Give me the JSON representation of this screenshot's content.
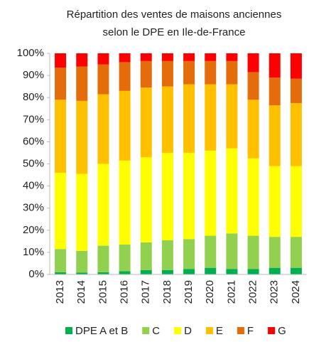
{
  "chart_data": {
    "type": "stacked_bar",
    "title": "Répartition des ventes de maisons anciennes selon le DPE en Ile-de-France",
    "categories": [
      "2013",
      "2014",
      "2015",
      "2016",
      "2017",
      "2018",
      "2019",
      "2020",
      "2021",
      "2022",
      "2023",
      "2024"
    ],
    "series": [
      {
        "name": "DPE A et B",
        "color": "#00b050",
        "values": [
          1,
          0.8,
          1,
          1.5,
          2,
          2,
          2.5,
          3,
          2.5,
          2.5,
          3,
          3
        ]
      },
      {
        "name": "C",
        "color": "#92d050",
        "values": [
          10.5,
          9.9,
          12,
          12,
          12.5,
          13.5,
          13.5,
          14.5,
          16,
          15,
          14,
          14
        ]
      },
      {
        "name": "D",
        "color": "#ffff00",
        "values": [
          34.5,
          34.8,
          37,
          38,
          38.5,
          39.5,
          39,
          38.5,
          38.5,
          35,
          32,
          32
        ]
      },
      {
        "name": "E",
        "color": "#ffc000",
        "values": [
          33,
          33,
          31.5,
          31.5,
          31.5,
          30,
          31,
          30,
          29,
          26.5,
          27.5,
          28.5
        ]
      },
      {
        "name": "F",
        "color": "#e46c0a",
        "values": [
          14.5,
          15.5,
          13.5,
          13,
          12,
          11.5,
          10.5,
          10.5,
          10.5,
          12.5,
          12.5,
          11
        ]
      },
      {
        "name": "G",
        "color": "#ff0000",
        "values": [
          6.5,
          6,
          5,
          4,
          3.5,
          3.5,
          3.5,
          3.5,
          3.5,
          8.5,
          11,
          11.5
        ]
      }
    ],
    "ylim": [
      0,
      100
    ],
    "yticks": [
      {
        "value": 0,
        "label": "0%"
      },
      {
        "value": 10,
        "label": "10%"
      },
      {
        "value": 20,
        "label": "20%"
      },
      {
        "value": 30,
        "label": "30%"
      },
      {
        "value": 40,
        "label": "40%"
      },
      {
        "value": 50,
        "label": "50%"
      },
      {
        "value": 60,
        "label": "60%"
      },
      {
        "value": 70,
        "label": "70%"
      },
      {
        "value": 80,
        "label": "80%"
      },
      {
        "value": 90,
        "label": "90%"
      },
      {
        "value": 100,
        "label": "100%"
      }
    ],
    "grid": false
  }
}
